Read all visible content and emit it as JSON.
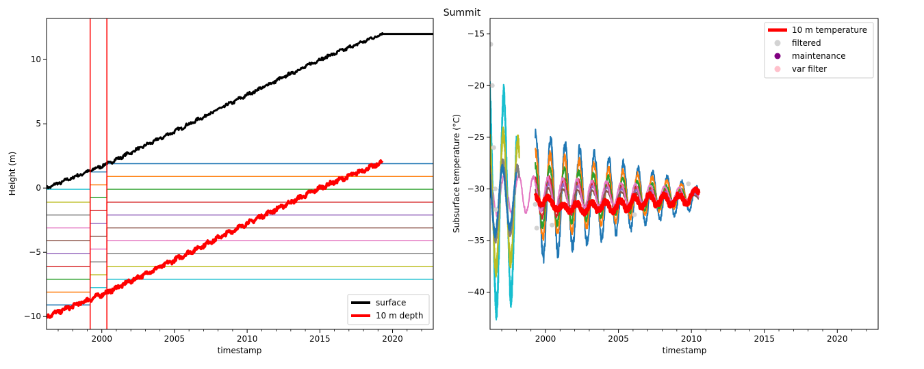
{
  "figure": {
    "title": "Summit"
  },
  "chart_data": [
    {
      "type": "line",
      "id": "height",
      "xlabel": "timestamp",
      "ylabel": "Height (m)",
      "xlim": [
        1996.2,
        2022.8
      ],
      "ylim": [
        -11.0,
        13.2
      ],
      "xticks": [
        2000,
        2005,
        2010,
        2015,
        2020
      ],
      "xtick_labels": [
        "2000",
        "2005",
        "2010",
        "2015",
        "2020"
      ],
      "yticks": [
        -10,
        -5,
        0,
        5,
        10
      ],
      "ytick_labels": [
        "−10",
        "−5",
        "0",
        "5",
        "10"
      ],
      "legend": {
        "position": "lower-right",
        "entries": [
          {
            "label": "surface",
            "color": "#000000"
          },
          {
            "label": "10 m depth",
            "color": "#ff0000"
          }
        ]
      },
      "surface": {
        "x": [
          1996.2,
          1999.2,
          2000.5,
          2005,
          2010,
          2015,
          2019.3,
          2022.8
        ],
        "y": [
          0.0,
          1.35,
          1.95,
          4.4,
          7.25,
          10.0,
          12.0,
          12.0
        ],
        "color": "#000000"
      },
      "depth_10m": {
        "x": [
          1996.2,
          1999.2,
          2000.5,
          2005,
          2010,
          2015,
          2019.3
        ],
        "y": [
          -10.0,
          -8.65,
          -8.05,
          -5.6,
          -2.75,
          0.0,
          2.0
        ],
        "color": "#ff0000"
      },
      "vlines": {
        "x": [
          1999.2,
          2000.35
        ],
        "color": "#ff0000"
      },
      "sensor_periods": [
        {
          "x_start": 1996.2,
          "x_end": 1999.2,
          "y": [
            -0.1,
            -1.1,
            -2.1,
            -3.1,
            -4.1,
            -5.1,
            -6.1,
            -7.1,
            -8.1,
            -9.1
          ],
          "colors": [
            "#17becf",
            "#bcbd22",
            "#7f7f7f",
            "#e377c2",
            "#8c564b",
            "#9467bd",
            "#d62728",
            "#2ca02c",
            "#ff7f0e",
            "#1f77b4"
          ]
        },
        {
          "x_start": 1999.2,
          "x_end": 2000.35,
          "y": [
            1.25,
            0.25,
            -0.75,
            -1.75,
            -2.75,
            -3.75,
            -4.75,
            -5.75,
            -6.75,
            -7.75
          ],
          "colors": [
            "#1f77b4",
            "#ff7f0e",
            "#2ca02c",
            "#d62728",
            "#9467bd",
            "#8c564b",
            "#e377c2",
            "#7f7f7f",
            "#bcbd22",
            "#17becf"
          ]
        },
        {
          "x_start": 2000.35,
          "x_end": 2022.8,
          "y": [
            1.9,
            0.9,
            -0.1,
            -1.1,
            -2.1,
            -3.1,
            -4.1,
            -5.1,
            -6.1,
            -7.1
          ],
          "colors": [
            "#1f77b4",
            "#ff7f0e",
            "#2ca02c",
            "#d62728",
            "#9467bd",
            "#8c564b",
            "#e377c2",
            "#7f7f7f",
            "#bcbd22",
            "#17becf"
          ]
        }
      ]
    },
    {
      "type": "line",
      "id": "temperature",
      "xlabel": "timestamp",
      "ylabel": "Subsurface temperature (°C)",
      "xlim": [
        1996.2,
        2022.8
      ],
      "ylim": [
        -43.6,
        -13.5
      ],
      "xticks": [
        2000,
        2005,
        2010,
        2015,
        2020
      ],
      "xtick_labels": [
        "2000",
        "2005",
        "2010",
        "2015",
        "2020"
      ],
      "yticks": [
        -40,
        -35,
        -30,
        -25,
        -20,
        -15
      ],
      "ytick_labels": [
        "−40",
        "−35",
        "−30",
        "−25",
        "−20",
        "−15"
      ],
      "legend": {
        "position": "upper-right",
        "entries": [
          {
            "label": "10 m temperature",
            "color": "#ff0000",
            "marker": "line"
          },
          {
            "label": "filtered",
            "color": "#d3d3d3",
            "marker": "dot"
          },
          {
            "label": "maintenance",
            "color": "#800080",
            "marker": "dot"
          },
          {
            "label": "var filter",
            "color": "#ffc0cb",
            "marker": "dot"
          }
        ]
      },
      "temp_10m": {
        "x": [
          1999.3,
          1999.6,
          2000.0,
          2000.5,
          2001.0,
          2001.5,
          2002.0,
          2002.5,
          2003.0,
          2003.5,
          2004.0,
          2004.5,
          2005.0,
          2005.5,
          2006.0,
          2006.5,
          2007.0,
          2007.5,
          2008.0,
          2008.5,
          2009.0,
          2009.5,
          2010.0,
          2010.5
        ],
        "y": [
          -31.0,
          -31.2,
          -31.0,
          -31.5,
          -31.8,
          -32.0,
          -31.5,
          -32.2,
          -31.5,
          -32.0,
          -31.3,
          -32.2,
          -31.2,
          -32.0,
          -30.8,
          -31.8,
          -30.6,
          -31.5,
          -30.7,
          -31.5,
          -30.7,
          -31.3,
          -30.6,
          -30.4
        ],
        "color": "#ff0000"
      },
      "sensor_series": [
        {
          "color": "#1f77b4",
          "x0": 1999.3,
          "x1": 2010.5,
          "mean": -30.8,
          "amp": [
            6.0,
            1.0
          ]
        },
        {
          "color": "#ff7f0e",
          "x0": 1999.3,
          "x1": 2010.5,
          "mean": -30.6,
          "amp": [
            4.2,
            0.7
          ]
        },
        {
          "color": "#2ca02c",
          "x0": 1999.3,
          "x1": 2010.5,
          "mean": -30.7,
          "amp": [
            3.0,
            0.5
          ]
        },
        {
          "color": "#d62728",
          "x0": 1999.3,
          "x1": 2010.5,
          "mean": -30.8,
          "amp": [
            2.0,
            0.4
          ]
        },
        {
          "color": "#9467bd",
          "x0": 1999.3,
          "x1": 2010.5,
          "mean": -30.8,
          "amp": [
            1.4,
            0.3
          ]
        },
        {
          "color": "#8c564b",
          "x0": 1999.3,
          "x1": 2010.5,
          "mean": -30.9,
          "amp": [
            1.0,
            0.25
          ]
        },
        {
          "color": "#e377c2",
          "x0": 1996.2,
          "x1": 2010.5,
          "mean": -30.5,
          "amp": [
            2.0,
            0.5
          ]
        },
        {
          "color": "#17becf",
          "x0": 1996.2,
          "x1": 1998.0,
          "mean": -31.0,
          "amp": [
            11.0,
            9.0
          ]
        },
        {
          "color": "#bcbd22",
          "x0": 1996.2,
          "x1": 1998.2,
          "mean": -31.0,
          "amp": [
            7.0,
            5.5
          ]
        },
        {
          "color": "#7f7f7f",
          "x0": 1996.2,
          "x1": 1998.2,
          "mean": -31.0,
          "amp": [
            4.0,
            3.0
          ]
        },
        {
          "color": "#1f77b4",
          "x0": 1996.2,
          "x1": 1998.0,
          "mean": -31.0,
          "amp": [
            3.5,
            2.5
          ]
        }
      ],
      "filtered": {
        "x": [
          1996.25,
          1996.35,
          1996.45,
          1996.55,
          1996.6,
          1999.3,
          1999.4,
          2000.3,
          2000.45,
          2006.1,
          2009.8
        ],
        "y": [
          -16.0,
          -20.0,
          -26.0,
          -30.0,
          -32.0,
          -31.5,
          -33.8,
          -31.0,
          -33.5,
          -32.5,
          -29.5
        ],
        "color": "#d3d3d3"
      }
    }
  ]
}
